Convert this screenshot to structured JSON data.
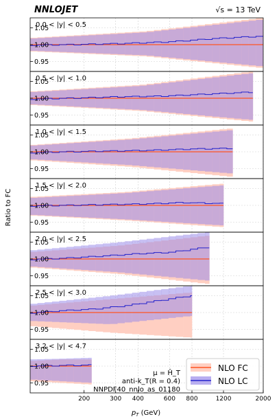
{
  "header": {
    "logo": "NNLOJET",
    "energy": "√s = 13 TeV"
  },
  "colors": {
    "fc_band": "#ffcfc2",
    "fc_line": "#ff5522",
    "lc_band": "#9a8cea",
    "lc_line": "#2222cc",
    "frame": "#000000",
    "grid": "#d0d0d0"
  },
  "chart_data": {
    "type": "area",
    "xlabel_main": "p",
    "xlabel_sub": "T",
    "xlabel_unit": " (GeV)",
    "ylabel": "Ratio to FC",
    "x_scale": "log",
    "xlim": [
      100,
      2000
    ],
    "ylim": [
      0.92,
      1.08
    ],
    "x_ticks": [
      200,
      300,
      400,
      600,
      800,
      1200,
      2000
    ],
    "x_tick_labels": [
      "200",
      "300",
      "400",
      "600",
      "800",
      "1200",
      "2000"
    ],
    "y_ticks": [
      0.95,
      1.0,
      1.05
    ],
    "y_tick_labels": [
      "0.95",
      "1.00",
      "1.05"
    ],
    "legend": {
      "position": "bottom-right",
      "entries": [
        "NLO FC",
        "NLO LC"
      ]
    },
    "annotations": [
      "μ = Ĥ_T",
      "anti-k_T(R = 0.4)",
      "NNPDF40_nnlo_as_01180"
    ],
    "panels": [
      {
        "label": "0.0 < |y| < 0.5",
        "x_start": 100,
        "x_end": 2000,
        "fc_band_lo": [
          0.98,
          0.965,
          0.93
        ],
        "fc_band_hi": [
          1.02,
          1.04,
          1.08
        ],
        "lc_band_lo": [
          0.982,
          0.968,
          0.935
        ],
        "lc_band_hi": [
          1.018,
          1.037,
          1.075
        ],
        "lc_ratio": [
          0.998,
          1.0,
          1.003,
          1.008,
          1.018,
          1.025
        ]
      },
      {
        "label": "0.5 < |y| < 1.0",
        "x_start": 100,
        "x_end": 1750,
        "fc_band_lo": [
          0.98,
          0.962,
          0.93
        ],
        "fc_band_hi": [
          1.02,
          1.04,
          1.08
        ],
        "lc_band_lo": [
          0.982,
          0.965,
          0.935
        ],
        "lc_band_hi": [
          1.018,
          1.037,
          1.075
        ],
        "lc_ratio": [
          0.997,
          1.0,
          1.004,
          1.006,
          1.012,
          1.018
        ]
      },
      {
        "label": "1.0 < |y| < 1.5",
        "x_start": 100,
        "x_end": 1350,
        "fc_band_lo": [
          0.975,
          0.955,
          0.925
        ],
        "fc_band_hi": [
          1.02,
          1.04,
          1.07
        ],
        "lc_band_lo": [
          0.978,
          0.96,
          0.935
        ],
        "lc_band_hi": [
          1.018,
          1.037,
          1.065
        ],
        "lc_ratio": [
          0.997,
          1.0,
          1.002,
          1.004,
          1.008,
          1.01
        ]
      },
      {
        "label": "1.5 < |y| < 2.0",
        "x_start": 100,
        "x_end": 1200,
        "fc_band_lo": [
          0.97,
          0.955,
          0.935
        ],
        "fc_band_hi": [
          1.025,
          1.04,
          1.065
        ],
        "lc_band_lo": [
          0.972,
          0.958,
          0.94
        ],
        "lc_band_hi": [
          1.022,
          1.037,
          1.06
        ],
        "lc_ratio": [
          0.998,
          1.0,
          1.002,
          1.004,
          1.008,
          1.005
        ]
      },
      {
        "label": "2.0 < |y| < 2.5",
        "x_start": 100,
        "x_end": 1000,
        "fc_band_lo": [
          0.975,
          0.955,
          0.925
        ],
        "fc_band_hi": [
          1.02,
          1.04,
          1.07
        ],
        "lc_band_lo": [
          0.978,
          0.96,
          0.935
        ],
        "lc_band_hi": [
          1.025,
          1.05,
          1.08
        ],
        "lc_ratio": [
          0.998,
          1.002,
          1.008,
          1.015,
          1.02,
          1.035
        ]
      },
      {
        "label": "2.5 < |y| < 3.0",
        "x_start": 100,
        "x_end": 800,
        "fc_band_lo": [
          0.96,
          0.94,
          0.925
        ],
        "fc_band_hi": [
          1.02,
          1.04,
          1.06
        ],
        "lc_band_lo": [
          0.975,
          0.965,
          0.99
        ],
        "lc_band_hi": [
          1.025,
          1.05,
          1.08
        ],
        "lc_ratio": [
          0.998,
          1.005,
          1.01,
          1.02,
          1.035,
          1.05
        ]
      },
      {
        "label": "3.2 < |y| < 4.7",
        "x_start": 100,
        "x_end": 220,
        "fc_band_lo": [
          0.955,
          0.95,
          0.945
        ],
        "fc_band_hi": [
          1.015,
          1.02,
          1.02
        ],
        "lc_band_lo": [
          0.96,
          0.955,
          0.95
        ],
        "lc_band_hi": [
          1.02,
          1.022,
          1.025
        ],
        "lc_ratio": [
          1.0,
          1.0,
          1.001,
          1.002,
          1.002,
          1.003
        ]
      }
    ]
  }
}
